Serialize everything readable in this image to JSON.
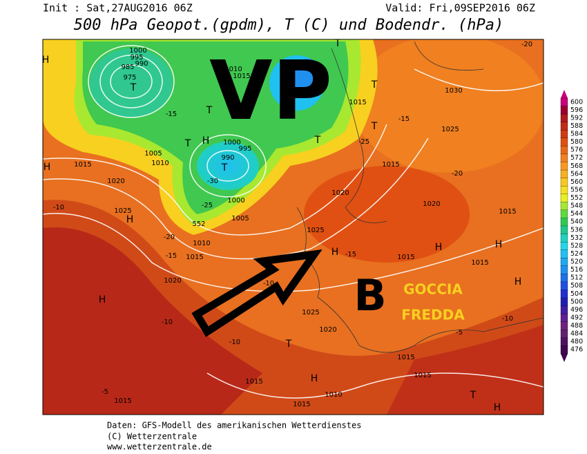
{
  "header": {
    "init": "Init : Sat,27AUG2016 06Z",
    "valid": "Valid: Fri,09SEP2016 06Z",
    "title": "500 hPa Geopot.(gpdm), T (C) und Bodendr. (hPa)"
  },
  "annotations": {
    "vp": "VP",
    "low": "B",
    "cold_drop": [
      "GOCCIA",
      "FREDDA"
    ]
  },
  "legend": [
    {
      "label": "600",
      "color": "#c8007a"
    },
    {
      "label": "596",
      "color": "#9c0030"
    },
    {
      "label": "592",
      "color": "#b01c1a"
    },
    {
      "label": "588",
      "color": "#c02c14"
    },
    {
      "label": "584",
      "color": "#d03c12"
    },
    {
      "label": "580",
      "color": "#e05012"
    },
    {
      "label": "576",
      "color": "#e86818"
    },
    {
      "label": "572",
      "color": "#f08020"
    },
    {
      "label": "568",
      "color": "#f89820"
    },
    {
      "label": "564",
      "color": "#f8b020"
    },
    {
      "label": "560",
      "color": "#f8c820"
    },
    {
      "label": "556",
      "color": "#f8e020"
    },
    {
      "label": "552",
      "color": "#e8f020"
    },
    {
      "label": "548",
      "color": "#a8e830"
    },
    {
      "label": "544",
      "color": "#60d840"
    },
    {
      "label": "540",
      "color": "#30c850"
    },
    {
      "label": "536",
      "color": "#20c890"
    },
    {
      "label": "532",
      "color": "#20d0c0"
    },
    {
      "label": "528",
      "color": "#20d8e8"
    },
    {
      "label": "524",
      "color": "#20c0f0"
    },
    {
      "label": "520",
      "color": "#20a8f0"
    },
    {
      "label": "516",
      "color": "#2090f0"
    },
    {
      "label": "512",
      "color": "#2070e8"
    },
    {
      "label": "508",
      "color": "#2050e0"
    },
    {
      "label": "504",
      "color": "#2030d0"
    },
    {
      "label": "500",
      "color": "#2020b0"
    },
    {
      "label": "496",
      "color": "#4020a0"
    },
    {
      "label": "492",
      "color": "#602090"
    },
    {
      "label": "488",
      "color": "#702080"
    },
    {
      "label": "484",
      "color": "#602070"
    },
    {
      "label": "480",
      "color": "#501060"
    },
    {
      "label": "476",
      "color": "#400850"
    }
  ],
  "map_labels": [
    "1000",
    "995",
    "990",
    "985",
    "975",
    "T",
    "1010",
    "1015",
    "T",
    "H",
    "T",
    "1000",
    "995",
    "990",
    "T",
    "1000",
    "1005",
    "1005",
    "1010",
    "1015",
    "1020",
    "1025",
    "H",
    "H",
    "-10",
    "-20",
    "-15",
    "1010",
    "1015",
    "1020",
    "H",
    "-10",
    "1025",
    "1020",
    "T",
    "H",
    "1015",
    "1015",
    "-5",
    "1015",
    "1010",
    "1015",
    "1015",
    "T",
    "H",
    "-5",
    "-10",
    "1015",
    "1015",
    "H",
    "1015",
    "1020",
    "1015",
    "1025",
    "1030",
    "-20",
    "-20",
    "-25",
    "-15",
    "T",
    "T",
    "1015",
    "1020",
    "1025",
    "-15",
    "-10",
    "-10",
    "H",
    "H",
    "H",
    "552",
    "-30",
    "-25",
    "-15",
    "H",
    "T",
    "T"
  ],
  "footer": [
    "Daten: GFS-Modell des amerikanischen Wetterdienstes",
    "(C) Wetterzentrale",
    "www.wetterzentrale.de"
  ]
}
